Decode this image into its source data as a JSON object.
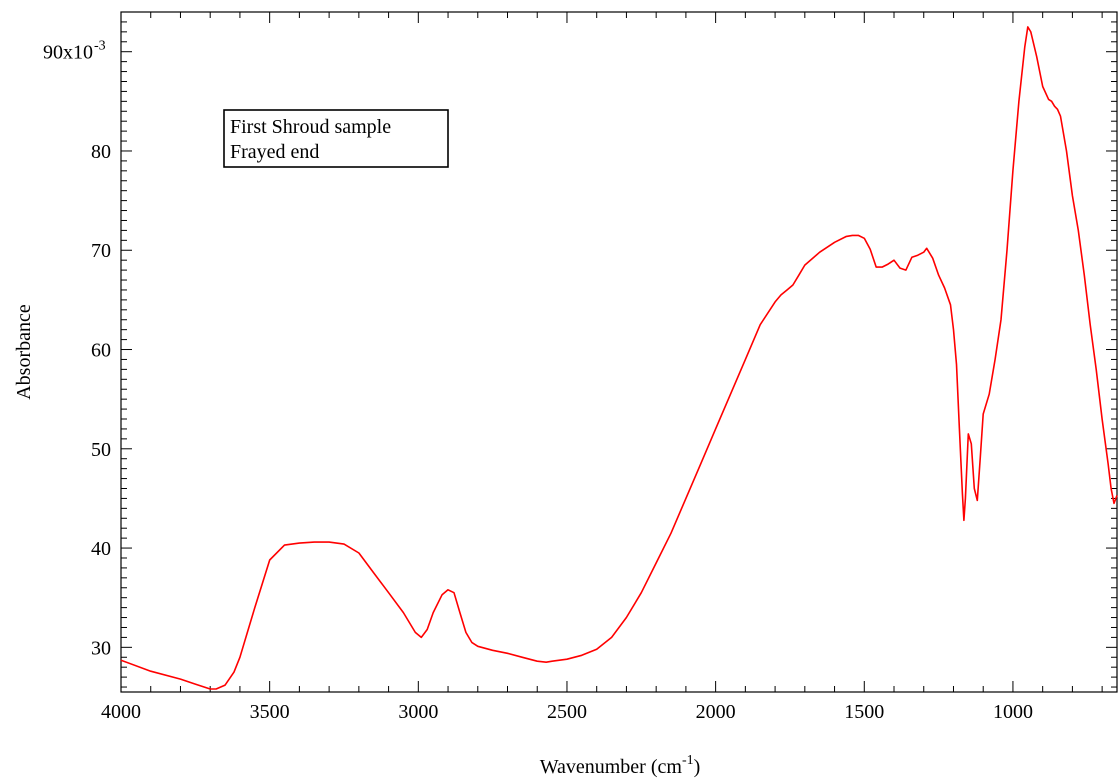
{
  "chart_data": {
    "type": "line",
    "title": "",
    "xlabel": "Wavenumber (cm",
    "xlabel_sup": "-1",
    "xlabel_close": ")",
    "ylabel": "Absorbance",
    "x_reversed": true,
    "xlim": [
      4000,
      650
    ],
    "ylim": [
      0.0255,
      0.094
    ],
    "x_ticks": [
      4000,
      3500,
      3000,
      2500,
      2000,
      1500,
      1000
    ],
    "x_tick_labels": [
      "4000",
      "3500",
      "3000",
      "2500",
      "2000",
      "1500",
      "1000"
    ],
    "y_ticks": [
      0.03,
      0.04,
      0.05,
      0.06,
      0.07,
      0.08,
      0.09
    ],
    "y_tick_labels": [
      "30",
      "40",
      "50",
      "60",
      "70",
      "80",
      "90x10"
    ],
    "y_top_label_sup": "-3",
    "grid": false,
    "legend": {
      "placement": "top-left",
      "lines": [
        "First Shroud sample",
        "Frayed end"
      ]
    },
    "series": [
      {
        "color": "#ff0000",
        "x": [
          4000,
          3900,
          3800,
          3750,
          3700,
          3680,
          3650,
          3620,
          3600,
          3550,
          3500,
          3450,
          3400,
          3350,
          3300,
          3250,
          3200,
          3150,
          3100,
          3050,
          3010,
          2990,
          2970,
          2950,
          2920,
          2900,
          2880,
          2860,
          2840,
          2820,
          2800,
          2750,
          2700,
          2650,
          2600,
          2570,
          2550,
          2500,
          2450,
          2400,
          2350,
          2300,
          2250,
          2200,
          2150,
          2100,
          2050,
          2000,
          1950,
          1900,
          1850,
          1800,
          1780,
          1760,
          1740,
          1720,
          1700,
          1650,
          1600,
          1560,
          1540,
          1520,
          1500,
          1480,
          1460,
          1440,
          1420,
          1400,
          1380,
          1360,
          1340,
          1320,
          1300,
          1290,
          1270,
          1250,
          1230,
          1210,
          1200,
          1190,
          1180,
          1170,
          1165,
          1160,
          1150,
          1140,
          1130,
          1120,
          1110,
          1100,
          1080,
          1060,
          1040,
          1020,
          1000,
          980,
          960,
          950,
          940,
          920,
          900,
          880,
          870,
          860,
          850,
          840,
          820,
          800,
          780,
          760,
          740,
          720,
          700,
          680,
          670,
          660,
          650
        ],
        "y": [
          0.0287,
          0.0276,
          0.0268,
          0.0263,
          0.0258,
          0.0258,
          0.0262,
          0.0275,
          0.029,
          0.034,
          0.0388,
          0.0403,
          0.0405,
          0.0406,
          0.0406,
          0.0404,
          0.0395,
          0.0375,
          0.0355,
          0.0335,
          0.0315,
          0.031,
          0.0318,
          0.0335,
          0.0353,
          0.0358,
          0.0355,
          0.0335,
          0.0315,
          0.0305,
          0.0301,
          0.0297,
          0.0294,
          0.029,
          0.0286,
          0.0285,
          0.0286,
          0.0288,
          0.0292,
          0.0298,
          0.031,
          0.033,
          0.0355,
          0.0385,
          0.0415,
          0.045,
          0.0485,
          0.052,
          0.0555,
          0.059,
          0.0625,
          0.0648,
          0.0655,
          0.066,
          0.0665,
          0.0675,
          0.0685,
          0.0698,
          0.0708,
          0.0714,
          0.0715,
          0.0715,
          0.0712,
          0.0701,
          0.0683,
          0.0683,
          0.0686,
          0.069,
          0.0682,
          0.068,
          0.0693,
          0.0695,
          0.0698,
          0.0702,
          0.0692,
          0.0675,
          0.0662,
          0.0645,
          0.062,
          0.0585,
          0.052,
          0.0455,
          0.0428,
          0.045,
          0.0515,
          0.0505,
          0.046,
          0.0448,
          0.049,
          0.0535,
          0.0555,
          0.059,
          0.063,
          0.07,
          0.078,
          0.085,
          0.0905,
          0.0925,
          0.092,
          0.0895,
          0.0865,
          0.0852,
          0.085,
          0.0845,
          0.0842,
          0.0835,
          0.08,
          0.0755,
          0.072,
          0.0675,
          0.0625,
          0.058,
          0.053,
          0.0485,
          0.046,
          0.0445,
          0.0453
        ]
      }
    ]
  }
}
